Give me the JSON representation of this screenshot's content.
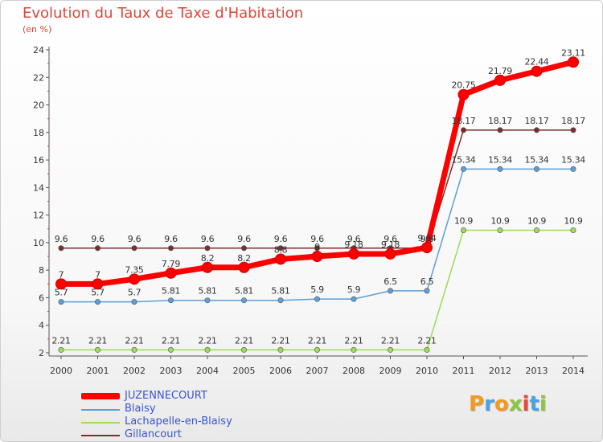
{
  "header": {
    "title": "Evolution du Taux de Taxe d'Habitation",
    "subtitle": "(en %)"
  },
  "chart_data": {
    "type": "line",
    "title": "Evolution du Taux de Taxe d'Habitation",
    "ylabel": "(en %)",
    "xlabel": "",
    "categories": [
      "2000",
      "2001",
      "2002",
      "2003",
      "2004",
      "2005",
      "2006",
      "2007",
      "2008",
      "2009",
      "2010",
      "2011",
      "2012",
      "2013",
      "2014"
    ],
    "ylim": [
      2,
      24
    ],
    "yticks": [
      2,
      4,
      6,
      8,
      10,
      12,
      14,
      16,
      18,
      20,
      22,
      24
    ],
    "grid": false,
    "legend_position": "bottom-left",
    "series": [
      {
        "name": "JUZENNECOURT",
        "color": "#ff0000",
        "values": [
          7,
          7,
          7.35,
          7.79,
          8.2,
          8.2,
          8.8,
          9,
          9.18,
          9.18,
          9.64,
          20.75,
          21.79,
          22.44,
          23.11
        ],
        "labels": [
          "7",
          "7",
          "7.35",
          "7.79",
          "8.2",
          "8.2",
          "8.8",
          "9",
          "9.18",
          "9.18",
          "9.64",
          "20.75",
          "21.79",
          "22.44",
          "23.11"
        ]
      },
      {
        "name": "Blaisy",
        "color": "#5d9fd6",
        "values": [
          5.7,
          5.7,
          5.7,
          5.81,
          5.81,
          5.81,
          5.81,
          5.9,
          5.9,
          6.5,
          6.5,
          15.34,
          15.34,
          15.34,
          15.34
        ],
        "labels": [
          "5.7",
          "5.7",
          "5.7",
          "5.81",
          "5.81",
          "5.81",
          "5.81",
          "5.9",
          "5.9",
          "6.5",
          "6.5",
          "15.34",
          "15.34",
          "15.34",
          "15.34"
        ]
      },
      {
        "name": "Lachapelle-en-Blaisy",
        "color": "#9bdc5a",
        "values": [
          2.21,
          2.21,
          2.21,
          2.21,
          2.21,
          2.21,
          2.21,
          2.21,
          2.21,
          2.21,
          2.21,
          10.9,
          10.9,
          10.9,
          10.9
        ],
        "labels": [
          "2.21",
          "2.21",
          "2.21",
          "2.21",
          "2.21",
          "2.21",
          "2.21",
          "2.21",
          "2.21",
          "2.21",
          "2.21",
          "10.9",
          "10.9",
          "10.9",
          "10.9"
        ]
      },
      {
        "name": "Gillancourt",
        "color": "#7a2e2e",
        "values": [
          9.6,
          9.6,
          9.6,
          9.6,
          9.6,
          9.6,
          9.6,
          9.6,
          9.6,
          9.6,
          9.6,
          18.17,
          18.17,
          18.17,
          18.17
        ],
        "labels": [
          "9.6",
          "9.6",
          "9.6",
          "9.6",
          "9.6",
          "9.6",
          "9.6",
          "9.6",
          "9.6",
          "9.6",
          "9.6",
          "18.17",
          "18.17",
          "18.17",
          "18.17"
        ]
      }
    ]
  },
  "legend": {
    "items": [
      {
        "label": "JUZENNECOURT",
        "color": "#ff0000"
      },
      {
        "label": "Blaisy",
        "color": "#5d9fd6"
      },
      {
        "label": "Lachapelle-en-Blaisy",
        "color": "#9bdc5a"
      },
      {
        "label": "Gillancourt",
        "color": "#7a2e2e"
      }
    ]
  },
  "logo": {
    "text": "Proxiti",
    "colors": [
      "#f29a1f",
      "#4aa3df",
      "#f29a1f",
      "#8cc63f",
      "#e04b3a",
      "#4aa3df",
      "#8cc63f"
    ]
  }
}
